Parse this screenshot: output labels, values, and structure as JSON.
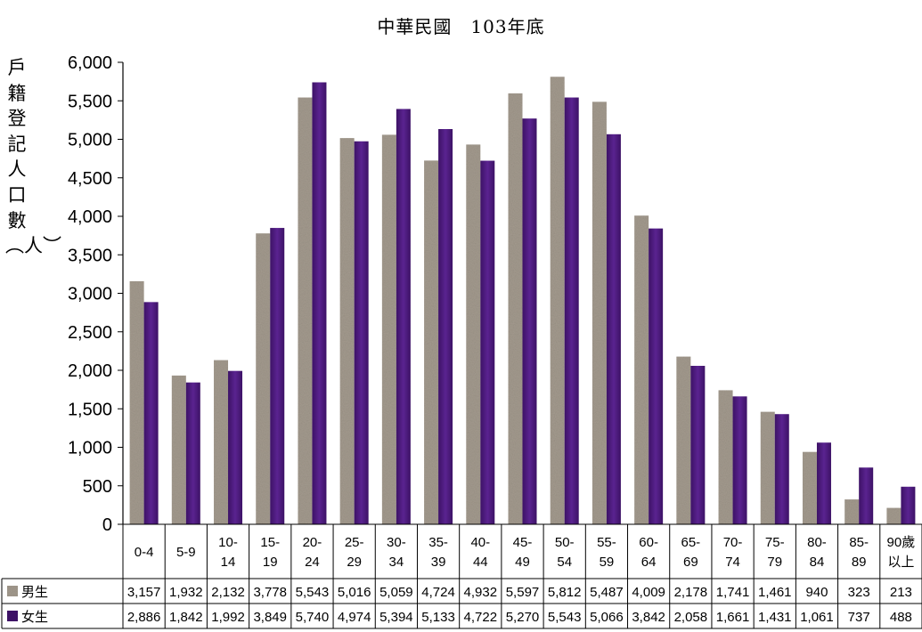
{
  "chart_data": {
    "type": "bar",
    "title": "中華民國　103年底",
    "ylabel": "戶籍登記人口數︵人︶",
    "xlabel": "",
    "ylim": [
      0,
      6000
    ],
    "yticks": [
      "0",
      "500",
      "1,000",
      "1,500",
      "2,000",
      "2,500",
      "3,000",
      "3,500",
      "4,000",
      "4,500",
      "5,000",
      "5,500",
      "6,000"
    ],
    "categories": [
      [
        "0-4"
      ],
      [
        "5-9"
      ],
      [
        "10-",
        "14"
      ],
      [
        "15-",
        "19"
      ],
      [
        "20-",
        "24"
      ],
      [
        "25-",
        "29"
      ],
      [
        "30-",
        "34"
      ],
      [
        "35-",
        "39"
      ],
      [
        "40-",
        "44"
      ],
      [
        "45-",
        "49"
      ],
      [
        "50-",
        "54"
      ],
      [
        "55-",
        "59"
      ],
      [
        "60-",
        "64"
      ],
      [
        "65-",
        "69"
      ],
      [
        "70-",
        "74"
      ],
      [
        "75-",
        "79"
      ],
      [
        "80-",
        "84"
      ],
      [
        "85-",
        "89"
      ],
      [
        "90歲",
        "以上"
      ]
    ],
    "series": [
      {
        "name": "男生",
        "color": "#a39a8e",
        "values": [
          3157,
          1932,
          2132,
          3778,
          5543,
          5016,
          5059,
          4724,
          4932,
          5597,
          5812,
          5487,
          4009,
          2178,
          1741,
          1461,
          940,
          323,
          213
        ],
        "labels": [
          "3,157",
          "1,932",
          "2,132",
          "3,778",
          "5,543",
          "5,016",
          "5,059",
          "4,724",
          "4,932",
          "5,597",
          "5,812",
          "5,487",
          "4,009",
          "2,178",
          "1,741",
          "1,461",
          "940",
          "323",
          "213"
        ]
      },
      {
        "name": "女生",
        "color": "#4b1a7a",
        "values": [
          2886,
          1842,
          1992,
          3849,
          5740,
          4974,
          5394,
          5133,
          4722,
          5270,
          5543,
          5066,
          3842,
          2058,
          1661,
          1431,
          1061,
          737,
          488
        ],
        "labels": [
          "2,886",
          "1,842",
          "1,992",
          "3,849",
          "5,740",
          "4,974",
          "5,394",
          "5,133",
          "4,722",
          "5,270",
          "5,543",
          "5,066",
          "3,842",
          "2,058",
          "1,661",
          "1,431",
          "1,061",
          "737",
          "488"
        ]
      }
    ],
    "legend": "data-table",
    "grid": false
  }
}
